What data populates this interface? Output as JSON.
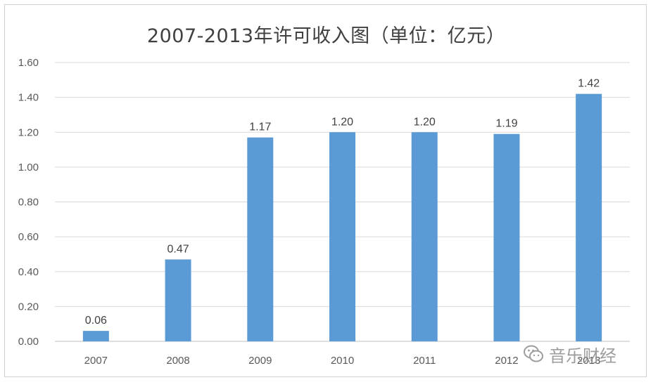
{
  "chart_data": {
    "type": "bar",
    "title": "2007-2013年许可收入图（单位：亿元）",
    "categories": [
      "2007",
      "2008",
      "2009",
      "2010",
      "2011",
      "2012",
      "2013"
    ],
    "values": [
      0.06,
      0.47,
      1.17,
      1.2,
      1.2,
      1.19,
      1.42
    ],
    "data_labels": [
      "0.06",
      "0.47",
      "1.17",
      "1.20",
      "1.20",
      "1.19",
      "1.42"
    ],
    "yticks": [
      "0.00",
      "0.20",
      "0.40",
      "0.60",
      "0.80",
      "1.00",
      "1.20",
      "1.40",
      "1.60"
    ],
    "ylim": [
      0,
      1.6
    ],
    "xlabel": "",
    "ylabel": "",
    "grid": true,
    "bar_color": "#5b9bd5"
  },
  "watermark": {
    "text": "音乐财经",
    "icon": "wechat-icon"
  }
}
